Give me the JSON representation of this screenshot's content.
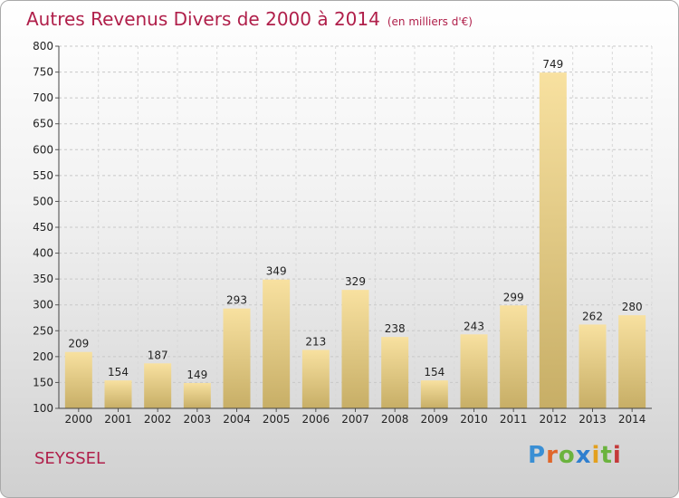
{
  "header": {
    "title": "Autres Revenus Divers de 2000 à 2014",
    "unit": "(en milliers d'€)"
  },
  "footer": {
    "place": "SEYSSEL",
    "logo_text": "Proxiti"
  },
  "colors": {
    "title": "#b01f4a",
    "bar_top": "#f8e1a0",
    "bar_bottom": "#c7ae66"
  },
  "chart_data": {
    "type": "bar",
    "title": "Autres Revenus Divers de 2000 à 2014",
    "subtitle": "(en milliers d'€)",
    "xlabel": "",
    "ylabel": "",
    "categories": [
      "2000",
      "2001",
      "2002",
      "2003",
      "2004",
      "2005",
      "2006",
      "2007",
      "2008",
      "2009",
      "2010",
      "2011",
      "2012",
      "2013",
      "2014"
    ],
    "values": [
      209,
      154,
      187,
      149,
      293,
      349,
      213,
      329,
      238,
      154,
      243,
      299,
      749,
      262,
      280
    ],
    "ylim": [
      100,
      800
    ],
    "yticks": [
      100,
      150,
      200,
      250,
      300,
      350,
      400,
      450,
      500,
      550,
      600,
      650,
      700,
      750,
      800
    ],
    "grid": true,
    "legend": "none"
  }
}
